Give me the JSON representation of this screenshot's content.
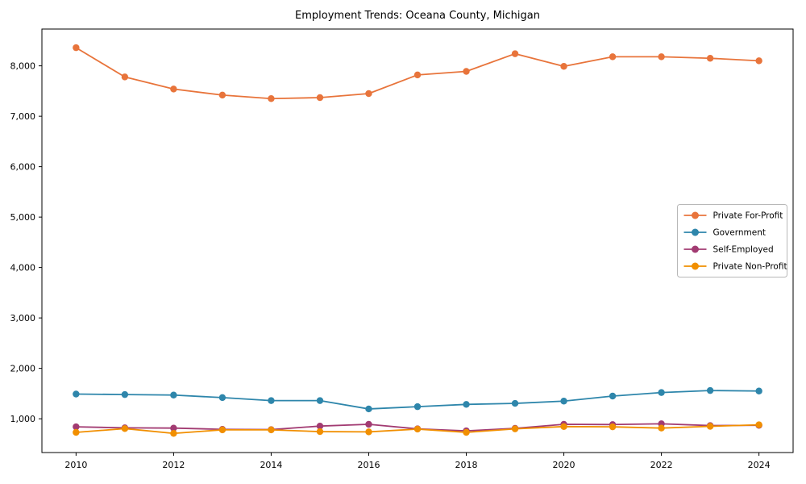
{
  "title": "Employment Trends: Oceana County, Michigan",
  "chart_data": {
    "type": "line",
    "title": "Employment Trends: Oceana County, Michigan",
    "xlabel": "",
    "ylabel": "",
    "grid": false,
    "legend_position": "center-right",
    "x": [
      2010,
      2011,
      2012,
      2013,
      2014,
      2015,
      2016,
      2017,
      2018,
      2019,
      2020,
      2021,
      2022,
      2023,
      2024
    ],
    "series": [
      {
        "name": "Private For-Profit",
        "color": "#E8743B",
        "values": [
          8360,
          7780,
          7540,
          7420,
          7350,
          7370,
          7450,
          7820,
          7890,
          8240,
          7990,
          8180,
          8180,
          8150,
          8100
        ]
      },
      {
        "name": "Government",
        "color": "#2E86AB",
        "values": [
          1490,
          1480,
          1470,
          1420,
          1360,
          1360,
          1195,
          1240,
          1285,
          1305,
          1350,
          1450,
          1520,
          1560,
          1550
        ]
      },
      {
        "name": "Self-Employed",
        "color": "#A23B72",
        "values": [
          840,
          820,
          815,
          790,
          785,
          855,
          890,
          800,
          760,
          810,
          890,
          885,
          900,
          865,
          870
        ]
      },
      {
        "name": "Private Non-Profit",
        "color": "#F18F01",
        "values": [
          730,
          805,
          710,
          780,
          780,
          745,
          740,
          795,
          730,
          800,
          845,
          840,
          815,
          850,
          880
        ]
      }
    ],
    "xticks": [
      2010,
      2012,
      2014,
      2016,
      2018,
      2020,
      2022,
      2024
    ],
    "xtick_labels": [
      "2010",
      "2012",
      "2014",
      "2016",
      "2018",
      "2020",
      "2022",
      "2024"
    ],
    "yticks": [
      1000,
      2000,
      3000,
      4000,
      5000,
      6000,
      7000,
      8000
    ],
    "ytick_labels": [
      "1,000",
      "2,000",
      "3,000",
      "4,000",
      "5,000",
      "6,000",
      "7,000",
      "8,000"
    ],
    "xlim": [
      2009.3,
      2024.7
    ],
    "ylim": [
      330,
      8730
    ],
    "axis_color": "#000000",
    "legend_border_color": "#b8b8b8"
  }
}
